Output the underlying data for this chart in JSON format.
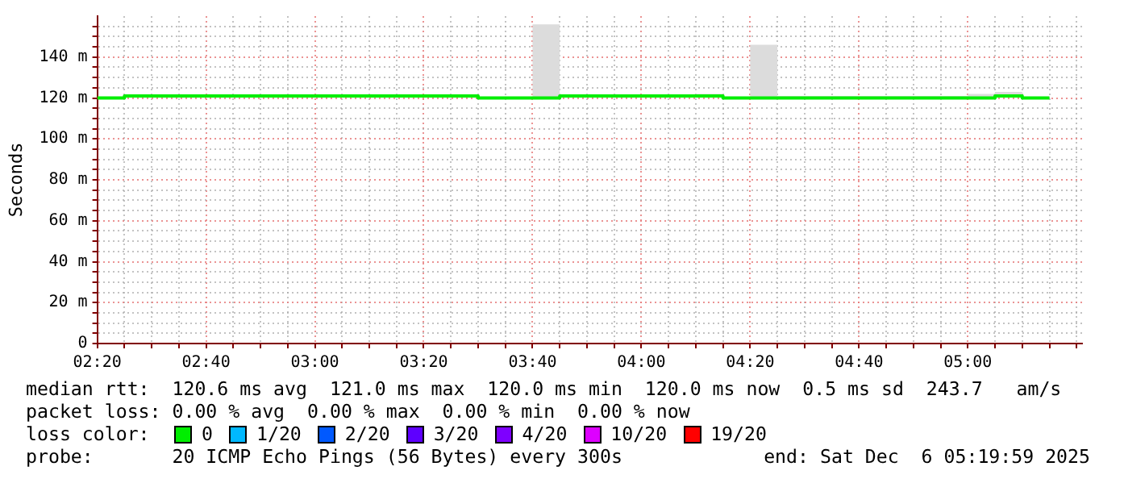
{
  "chart_data": {
    "type": "step",
    "ylabel": "Seconds",
    "x": [
      2.3333,
      2.4167,
      3.4167,
      3.5,
      3.6667,
      3.75,
      4.1667,
      4.25,
      4.3333,
      4.4167,
      5.0,
      5.0833,
      5.1667,
      5.25
    ],
    "series": [
      {
        "name": "0",
        "color": "#00ee00",
        "values": [
          120,
          121,
          121,
          120,
          120,
          121,
          121,
          120,
          120,
          120,
          120,
          121,
          120,
          120
        ],
        "lower": [
          120,
          121,
          121,
          120,
          120,
          121,
          121,
          120,
          120,
          120,
          120,
          121,
          120,
          120
        ],
        "upper": [
          120,
          121,
          121,
          120,
          156,
          121,
          122,
          120,
          146,
          121,
          122,
          123,
          120,
          120
        ]
      },
      {
        "name": "1/20",
        "color": "#00b8ff",
        "values": [
          null,
          null,
          null,
          null,
          null,
          null,
          null,
          null,
          null,
          null,
          null,
          null,
          null,
          null
        ]
      },
      {
        "name": "2/20",
        "color": "#0059ff",
        "values": [
          null,
          null,
          null,
          null,
          null,
          null,
          null,
          null,
          null,
          null,
          null,
          null,
          null,
          null
        ]
      },
      {
        "name": "3/20",
        "color": "#5e00ff",
        "values": [
          null,
          null,
          null,
          null,
          null,
          null,
          null,
          null,
          null,
          null,
          null,
          null,
          null,
          null
        ]
      },
      {
        "name": "4/20",
        "color": "#7e00ff",
        "values": [
          null,
          null,
          null,
          null,
          null,
          null,
          null,
          null,
          null,
          null,
          null,
          null,
          null,
          null
        ]
      },
      {
        "name": "10/20",
        "color": "#dd00ff",
        "values": [
          null,
          null,
          null,
          null,
          null,
          null,
          null,
          null,
          null,
          null,
          null,
          null,
          null,
          null
        ]
      },
      {
        "name": "19/20",
        "color": "#ff0000",
        "values": [
          null,
          null,
          null,
          null,
          null,
          null,
          null,
          null,
          null,
          null,
          null,
          null,
          null,
          null
        ]
      }
    ],
    "xlim": [
      2.3333,
      5.35
    ],
    "xticks": [
      {
        "value": 2.3333,
        "label": "02:20"
      },
      {
        "value": 2.4167,
        "label": null
      },
      {
        "value": 2.5,
        "label": null
      },
      {
        "value": 2.5833,
        "label": null
      },
      {
        "value": 2.6667,
        "label": "02:40"
      },
      {
        "value": 2.75,
        "label": null
      },
      {
        "value": 2.8333,
        "label": null
      },
      {
        "value": 2.9167,
        "label": null
      },
      {
        "value": 3.0,
        "label": "03:00"
      },
      {
        "value": 3.0833,
        "label": null
      },
      {
        "value": 3.1667,
        "label": null
      },
      {
        "value": 3.25,
        "label": null
      },
      {
        "value": 3.3333,
        "label": "03:20"
      },
      {
        "value": 3.4167,
        "label": null
      },
      {
        "value": 3.5,
        "label": null
      },
      {
        "value": 3.5833,
        "label": null
      },
      {
        "value": 3.6667,
        "label": "03:40"
      },
      {
        "value": 3.75,
        "label": null
      },
      {
        "value": 3.8333,
        "label": null
      },
      {
        "value": 3.9167,
        "label": null
      },
      {
        "value": 4.0,
        "label": "04:00"
      },
      {
        "value": 4.0833,
        "label": null
      },
      {
        "value": 4.1667,
        "label": null
      },
      {
        "value": 4.25,
        "label": null
      },
      {
        "value": 4.3333,
        "label": "04:20"
      },
      {
        "value": 4.4167,
        "label": null
      },
      {
        "value": 4.5,
        "label": null
      },
      {
        "value": 4.5833,
        "label": null
      },
      {
        "value": 4.6667,
        "label": "04:40"
      },
      {
        "value": 4.75,
        "label": null
      },
      {
        "value": 4.8333,
        "label": null
      },
      {
        "value": 4.9167,
        "label": null
      },
      {
        "value": 5.0,
        "label": "05:00"
      },
      {
        "value": 5.0833,
        "label": null
      },
      {
        "value": 5.1667,
        "label": null
      },
      {
        "value": 5.25,
        "label": null
      },
      {
        "value": 5.3333,
        "label": null
      }
    ],
    "ylim": [
      0,
      160
    ],
    "yticks": [
      {
        "value": 0,
        "label": "0"
      },
      {
        "value": 5,
        "label": null
      },
      {
        "value": 10,
        "label": null
      },
      {
        "value": 15,
        "label": null
      },
      {
        "value": 20,
        "label": "20 m"
      },
      {
        "value": 25,
        "label": null
      },
      {
        "value": 30,
        "label": null
      },
      {
        "value": 35,
        "label": null
      },
      {
        "value": 40,
        "label": "40 m"
      },
      {
        "value": 45,
        "label": null
      },
      {
        "value": 50,
        "label": null
      },
      {
        "value": 55,
        "label": null
      },
      {
        "value": 60,
        "label": "60 m"
      },
      {
        "value": 65,
        "label": null
      },
      {
        "value": 70,
        "label": null
      },
      {
        "value": 75,
        "label": null
      },
      {
        "value": 80,
        "label": "80 m"
      },
      {
        "value": 85,
        "label": null
      },
      {
        "value": 90,
        "label": null
      },
      {
        "value": 95,
        "label": null
      },
      {
        "value": 100,
        "label": "100 m"
      },
      {
        "value": 105,
        "label": null
      },
      {
        "value": 110,
        "label": null
      },
      {
        "value": 115,
        "label": null
      },
      {
        "value": 120,
        "label": "120 m"
      },
      {
        "value": 125,
        "label": null
      },
      {
        "value": 130,
        "label": null
      },
      {
        "value": 135,
        "label": null
      },
      {
        "value": 140,
        "label": "140 m"
      },
      {
        "value": 145,
        "label": null
      },
      {
        "value": 150,
        "label": null
      },
      {
        "value": 155,
        "label": null
      }
    ],
    "grid": true,
    "legend": "bottom",
    "legend_title": "loss color:",
    "annotations": [
      "median rtt:  120.6 ms avg  121.0 ms max  120.0 ms min  120.0 ms now  0.5 ms sd  243.7   am/s",
      "packet loss: 0.00 % avg  0.00 % max  0.00 % min  0.00 % now",
      "probe:       20 ICMP Echo Pings (56 Bytes) every 300s",
      "end: Sat Dec  6 05:19:59 2025"
    ]
  }
}
